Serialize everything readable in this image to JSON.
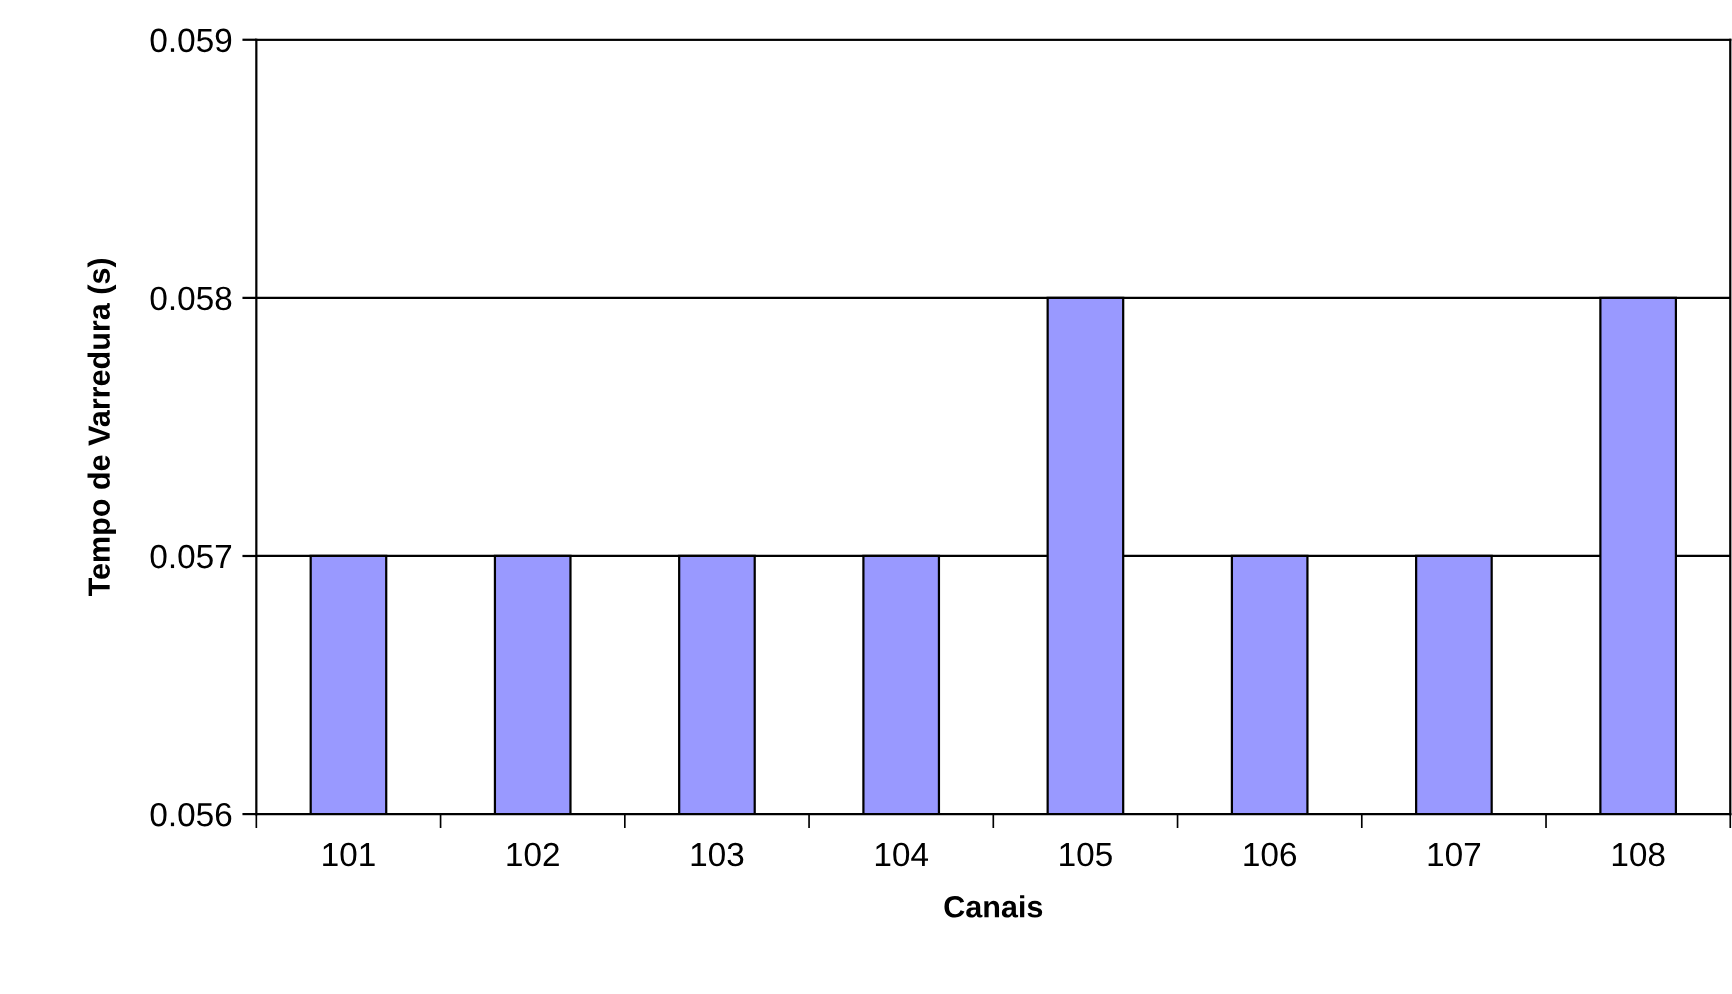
{
  "chart_data": {
    "type": "bar",
    "xlabel": "Canais",
    "ylabel": "Tempo de Varredura (s)",
    "categories": [
      "101",
      "102",
      "103",
      "104",
      "105",
      "106",
      "107",
      "108"
    ],
    "values": [
      0.057,
      0.057,
      0.057,
      0.057,
      0.058,
      0.057,
      0.057,
      0.058
    ],
    "color": "#9999ff",
    "ylim": [
      0.056,
      0.059
    ],
    "yticks": [
      0.056,
      0.057,
      0.058,
      0.059
    ],
    "grid": "y",
    "legend": false
  }
}
